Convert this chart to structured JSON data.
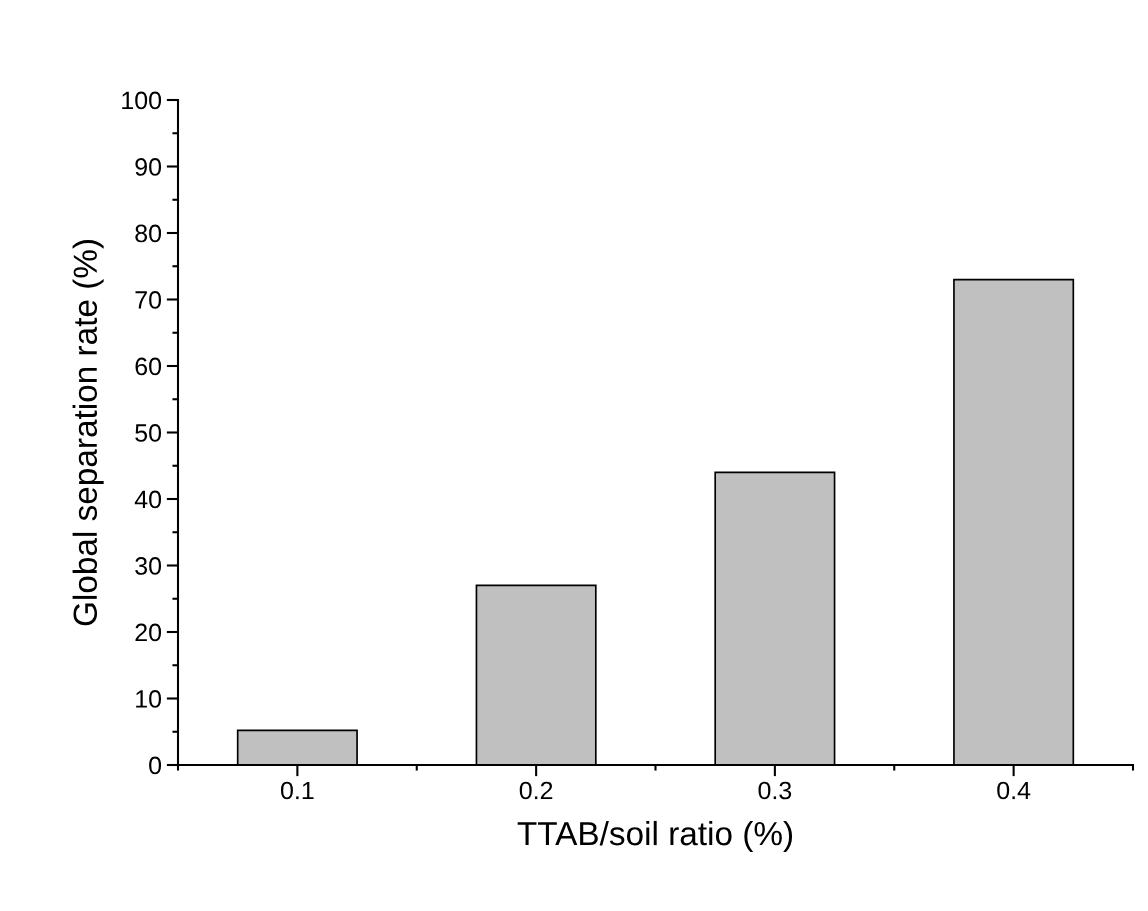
{
  "chart_data": {
    "type": "bar",
    "xlabel": "TTAB/soil ratio (%)",
    "ylabel": "Global separation rate (%)",
    "categories": [
      "0.1",
      "0.2",
      "0.3",
      "0.4"
    ],
    "values": [
      5.2,
      27,
      44,
      73
    ],
    "color": "#c0c0c0",
    "ylim": [
      0,
      100
    ],
    "yticks": [
      0,
      10,
      20,
      30,
      40,
      50,
      60,
      70,
      80,
      90,
      100
    ],
    "grid": false,
    "legend": false
  }
}
